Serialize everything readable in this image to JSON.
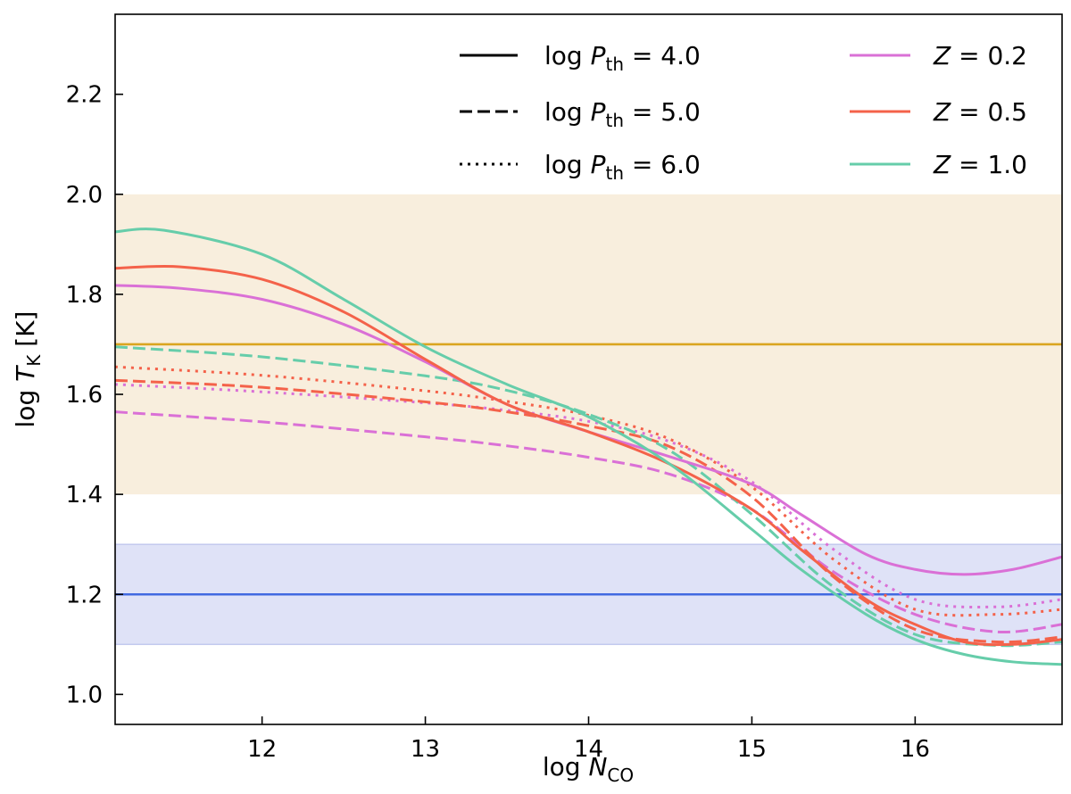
{
  "chart_data": {
    "type": "line",
    "xlabel": "log N_CO",
    "ylabel": "log T_K [K]",
    "xlim": [
      11.1,
      16.9
    ],
    "ylim": [
      0.94,
      2.36
    ],
    "xticks": [
      "12",
      "13",
      "14",
      "15",
      "16"
    ],
    "yticks": [
      "1.0",
      "1.2",
      "1.4",
      "1.6",
      "1.8",
      "2.0",
      "2.2"
    ],
    "grid": false,
    "legend_placement": "top-right",
    "linestyle_legend": [
      {
        "label_prefix": "log ",
        "symbol": "P",
        "subscript": "th",
        "value": " = 4.0",
        "style": "solid"
      },
      {
        "label_prefix": "log ",
        "symbol": "P",
        "subscript": "th",
        "value": " = 5.0",
        "style": "dashed"
      },
      {
        "label_prefix": "log ",
        "symbol": "P",
        "subscript": "th",
        "value": " = 6.0",
        "style": "dotted"
      }
    ],
    "color_legend": [
      {
        "symbol": "Z",
        "value": " = 0.2",
        "color": "#da70d6"
      },
      {
        "symbol": "Z",
        "value": " = 0.5",
        "color": "#f4624a"
      },
      {
        "symbol": "Z",
        "value": " = 1.0",
        "color": "#66cdaa"
      }
    ],
    "bands": [
      {
        "y0": 1.4,
        "y1": 2.0,
        "color": "#f8eedd"
      },
      {
        "y0": 1.1,
        "y1": 1.3,
        "color": "#dfe2f7",
        "edge": "#c2c9ee"
      }
    ],
    "hlines": [
      {
        "y": 1.7,
        "color": "#daa520"
      },
      {
        "y": 1.2,
        "color": "#4169e1"
      }
    ],
    "series": [
      {
        "Z": "0.5",
        "logPth": "6.0",
        "style": "dotted",
        "color": "#f4624a",
        "x": [
          11.1,
          12,
          13,
          13.5,
          14,
          14.5,
          15,
          15.5,
          16,
          16.5,
          16.9
        ],
        "y": [
          1.655,
          1.638,
          1.607,
          1.586,
          1.558,
          1.51,
          1.415,
          1.27,
          1.17,
          1.16,
          1.17
        ]
      },
      {
        "Z": "0.2",
        "logPth": "6.0",
        "style": "dotted",
        "color": "#da70d6",
        "x": [
          11.1,
          12,
          13,
          13.5,
          14,
          14.5,
          15,
          15.5,
          16,
          16.5,
          16.9
        ],
        "y": [
          1.62,
          1.605,
          1.583,
          1.568,
          1.546,
          1.505,
          1.425,
          1.29,
          1.19,
          1.175,
          1.19
        ]
      },
      {
        "Z": "0.2",
        "logPth": "5.0",
        "style": "dashed",
        "color": "#da70d6",
        "x": [
          11.1,
          12,
          13,
          13.5,
          14,
          14.5,
          15,
          15.5,
          16,
          16.5,
          16.9
        ],
        "y": [
          1.565,
          1.545,
          1.515,
          1.497,
          1.474,
          1.44,
          1.37,
          1.245,
          1.16,
          1.125,
          1.14
        ]
      },
      {
        "Z": "0.5",
        "logPth": "5.0",
        "style": "dashed",
        "color": "#f4624a",
        "x": [
          11.1,
          12,
          13,
          13.5,
          14,
          14.5,
          15,
          15.5,
          16,
          16.5,
          16.9
        ],
        "y": [
          1.628,
          1.614,
          1.585,
          1.565,
          1.537,
          1.495,
          1.395,
          1.235,
          1.13,
          1.105,
          1.115
        ]
      },
      {
        "Z": "1.0",
        "logPth": "5.0",
        "style": "dashed",
        "color": "#66cdaa",
        "x": [
          11.1,
          12,
          13,
          13.5,
          14,
          14.5,
          15,
          15.5,
          16,
          16.5,
          16.9
        ],
        "y": [
          1.695,
          1.675,
          1.637,
          1.608,
          1.56,
          1.487,
          1.36,
          1.215,
          1.12,
          1.098,
          1.105
        ]
      },
      {
        "Z": "0.2",
        "logPth": "4.0",
        "style": "solid",
        "color": "#da70d6",
        "x": [
          11.1,
          11.5,
          12,
          12.5,
          13,
          13.5,
          14,
          14.5,
          15,
          15.3,
          15.7,
          16,
          16.3,
          16.6,
          16.9
        ],
        "y": [
          1.818,
          1.812,
          1.79,
          1.74,
          1.665,
          1.58,
          1.525,
          1.475,
          1.42,
          1.36,
          1.28,
          1.25,
          1.24,
          1.25,
          1.275
        ]
      },
      {
        "Z": "0.5",
        "logPth": "4.0",
        "style": "solid",
        "color": "#f4624a",
        "x": [
          11.1,
          11.5,
          12,
          12.5,
          13,
          13.5,
          14,
          14.5,
          15,
          15.3,
          15.7,
          16,
          16.3,
          16.6,
          16.9
        ],
        "y": [
          1.852,
          1.855,
          1.83,
          1.765,
          1.67,
          1.58,
          1.525,
          1.46,
          1.37,
          1.29,
          1.19,
          1.14,
          1.105,
          1.1,
          1.11
        ]
      },
      {
        "Z": "1.0",
        "logPth": "4.0",
        "style": "solid",
        "color": "#66cdaa",
        "x": [
          11.1,
          11.4,
          12,
          12.5,
          13,
          13.5,
          14,
          14.5,
          15,
          15.3,
          15.7,
          16,
          16.3,
          16.6,
          16.9
        ],
        "y": [
          1.925,
          1.928,
          1.88,
          1.79,
          1.695,
          1.62,
          1.555,
          1.46,
          1.33,
          1.25,
          1.16,
          1.11,
          1.08,
          1.065,
          1.06
        ]
      }
    ]
  }
}
